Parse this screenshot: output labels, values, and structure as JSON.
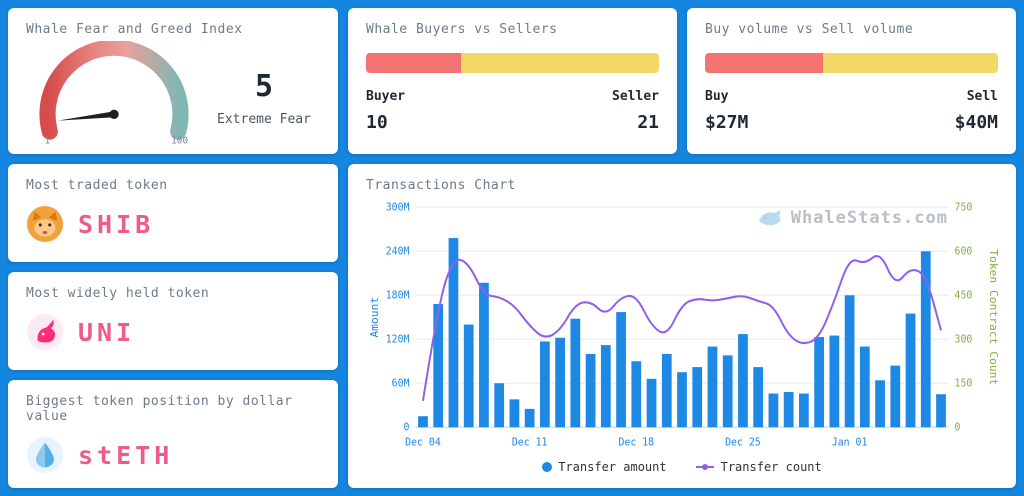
{
  "theme": {
    "background": "#1486e0",
    "card_bg": "#ffffff",
    "title_color": "#6e7b8a",
    "value_color": "#1f2933",
    "pink": "#ee5a8b",
    "red_bar": "#f37272",
    "yellow_bar": "#f2d967",
    "bar_blue": "#1e88e5",
    "line_purple": "#9061e8",
    "axis_green": "#7cb342",
    "grid_color": "#ececec",
    "watermark_color": "#b6bcc2"
  },
  "cards": {
    "fear_greed": {
      "title": "Whale Fear and Greed Index",
      "value": "5",
      "value_num": 5,
      "min": "1",
      "min_num": 1,
      "max": "100",
      "max_num": 100,
      "label": "Extreme Fear"
    },
    "buyers_sellers": {
      "title": "Whale Buyers vs Sellers",
      "left_label": "Buyer",
      "right_label": "Seller",
      "left_value": "10",
      "right_value": "21",
      "left_num": 10,
      "right_num": 21
    },
    "volume": {
      "title": "Buy volume vs Sell volume",
      "left_label": "Buy",
      "right_label": "Sell",
      "left_value": "$27M",
      "right_value": "$40M",
      "left_num": 27,
      "right_num": 40
    },
    "most_traded": {
      "title": "Most traded token",
      "token": "SHIB",
      "icon": "shib-icon"
    },
    "most_held": {
      "title": "Most widely held token",
      "token": "UNI",
      "icon": "uni-icon"
    },
    "biggest_position": {
      "title": "Biggest token position by dollar value",
      "token": "stETH",
      "icon": "steth-icon"
    }
  },
  "chart": {
    "title": "Transactions Chart",
    "watermark": "WhaleStats.com",
    "legend": [
      "Transfer amount",
      "Transfer count"
    ]
  },
  "chart_data": {
    "type": "combo",
    "title": "Transactions Chart",
    "n_points": 35,
    "x_tick_labels": [
      "Dec 04",
      "Dec 11",
      "Dec 18",
      "Dec 25",
      "Jan 01"
    ],
    "x_tick_indices": [
      0,
      7,
      14,
      21,
      28
    ],
    "series": [
      {
        "name": "Transfer amount",
        "type": "bar",
        "axis": "left",
        "unit": "M",
        "values": [
          15,
          168,
          258,
          140,
          197,
          60,
          38,
          25,
          117,
          122,
          148,
          100,
          112,
          157,
          90,
          66,
          100,
          75,
          82,
          110,
          98,
          127,
          82,
          46,
          48,
          46,
          123,
          125,
          180,
          110,
          64,
          84,
          155,
          240,
          45
        ]
      },
      {
        "name": "Transfer count",
        "type": "line",
        "axis": "right",
        "values": [
          90,
          420,
          580,
          560,
          450,
          445,
          415,
          345,
          300,
          330,
          420,
          430,
          380,
          445,
          450,
          345,
          310,
          420,
          440,
          430,
          440,
          450,
          430,
          415,
          310,
          280,
          305,
          430,
          580,
          555,
          600,
          480,
          545,
          520,
          330
        ]
      }
    ],
    "left_axis": {
      "label": "Amount",
      "min": 0,
      "max": 300,
      "tick_values": [
        0,
        60,
        120,
        180,
        240,
        300
      ],
      "tick_labels": [
        "0",
        "60M",
        "120M",
        "180M",
        "240M",
        "300M"
      ]
    },
    "right_axis": {
      "label": "Token Contract Count",
      "min": 0,
      "max": 750,
      "tick_values": [
        0,
        150,
        300,
        450,
        600,
        750
      ],
      "tick_labels": [
        "0",
        "150",
        "300",
        "450",
        "600",
        "750"
      ]
    },
    "grid": true,
    "legend_position": "bottom"
  }
}
